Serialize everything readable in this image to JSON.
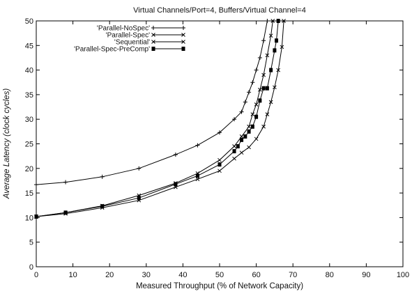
{
  "chart_data": {
    "type": "line",
    "title": "Virtual Channels/Port=4, Buffers/Virtual Channel=4",
    "xlabel": "Measured Throughput (% of Network Capacity)",
    "ylabel": "Average Latency (clock cycles)",
    "xlim": [
      0,
      100
    ],
    "ylim": [
      0,
      50
    ],
    "xticks": [
      "0",
      "10",
      "20",
      "30",
      "40",
      "50",
      "60",
      "70",
      "80",
      "90",
      "100"
    ],
    "yticks": [
      "0",
      "5",
      "10",
      "15",
      "20",
      "25",
      "30",
      "35",
      "40",
      "45",
      "50"
    ],
    "grid": false,
    "legend_position": "top-left",
    "series": [
      {
        "name": "'Parallel-NoSpec'",
        "marker": "plus",
        "x": [
          0,
          8,
          18,
          28,
          38,
          44,
          50,
          54,
          56,
          57,
          58,
          59,
          60,
          61,
          62,
          63
        ],
        "y": [
          16.7,
          17.2,
          18.3,
          20.0,
          22.8,
          24.7,
          27.3,
          30.0,
          31.5,
          33.5,
          35.5,
          37.5,
          40.0,
          42.5,
          46.0,
          50.0
        ]
      },
      {
        "name": "'Parallel-Spec'",
        "marker": "cross",
        "x": [
          0,
          8,
          18,
          28,
          38,
          44,
          50,
          54,
          56,
          58,
          60,
          62,
          63,
          64,
          65,
          66,
          67,
          67.5
        ],
        "y": [
          10.2,
          10.8,
          12.0,
          13.5,
          16.2,
          17.8,
          19.5,
          22.0,
          23.2,
          24.3,
          26.0,
          28.5,
          31.0,
          33.5,
          36.5,
          40.0,
          44.7,
          50.0
        ]
      },
      {
        "name": "'Sequential'",
        "marker": "cross",
        "x": [
          0,
          8,
          18,
          28,
          38,
          44,
          50,
          54,
          56,
          58,
          59,
          60,
          61,
          62,
          63,
          64,
          64.5
        ],
        "y": [
          10.2,
          11.0,
          12.4,
          14.5,
          17.0,
          19.0,
          21.7,
          24.5,
          26.5,
          28.5,
          31.0,
          33.0,
          36.0,
          39.0,
          43.0,
          47.0,
          50.0
        ]
      },
      {
        "name": "'Parallel-Spec-PreComp'",
        "marker": "square",
        "x": [
          0,
          8,
          18,
          28,
          38,
          44,
          50,
          54,
          55,
          56,
          57,
          58,
          59,
          60,
          61,
          62,
          63,
          64,
          65,
          65.5,
          66
        ],
        "y": [
          10.2,
          11.0,
          12.3,
          14.0,
          16.8,
          18.5,
          20.8,
          23.5,
          24.5,
          25.8,
          26.5,
          27.5,
          28.5,
          30.5,
          33.8,
          36.3,
          36.3,
          40.0,
          44.0,
          46.0,
          50.0
        ]
      }
    ]
  }
}
